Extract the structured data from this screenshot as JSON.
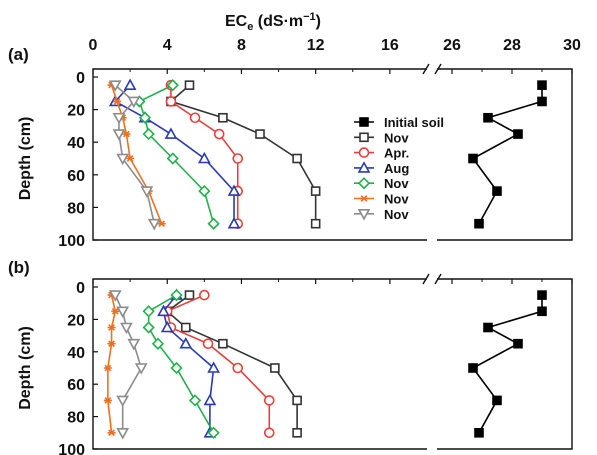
{
  "chart_data": {
    "type": "line",
    "xlabel": "EC",
    "xlabel_sub": "e",
    "xlabel_unit": " (dS·m",
    "xlabel_sup": "−1",
    "xlabel_close": ")",
    "ylabel": "Depth (cm)",
    "x_ticks_left": [
      "0",
      "4",
      "8",
      "12",
      "16"
    ],
    "x_ticks_right": [
      "26",
      "28",
      "30"
    ],
    "y_ticks": [
      "0",
      "20",
      "40",
      "60",
      "80",
      "100"
    ],
    "xlim_left": [
      0,
      18
    ],
    "xlim_right": [
      25.5,
      30
    ],
    "ylim": [
      0,
      100
    ],
    "x_axis_break": true,
    "legend_position": "right-middle",
    "panels": [
      {
        "label": "(a)",
        "series": [
          {
            "name": "Initial soil",
            "color": "#000000",
            "marker": "square-filled",
            "x": [
              29.0,
              29.0,
              27.2,
              28.2,
              26.7,
              27.5,
              26.9
            ],
            "y": [
              5,
              15,
              25,
              35,
              50,
              70,
              90
            ]
          },
          {
            "name": "Nov",
            "color": "#333333",
            "marker": "square-open",
            "x": [
              5.2,
              4.2,
              7.0,
              9.0,
              11.0,
              12.0,
              12.0
            ],
            "y": [
              5,
              15,
              25,
              35,
              50,
              70,
              90
            ]
          },
          {
            "name": "Apr.",
            "color": "#e8413c",
            "marker": "circle-open",
            "x": [
              4.2,
              4.2,
              5.5,
              6.8,
              7.8,
              7.8,
              7.8
            ],
            "y": [
              5,
              15,
              25,
              35,
              50,
              70,
              90
            ]
          },
          {
            "name": "Aug",
            "color": "#2a3ab5",
            "marker": "triangle-open",
            "x": [
              2.0,
              1.2,
              2.8,
              4.2,
              6.0,
              7.6,
              7.6
            ],
            "y": [
              5,
              15,
              25,
              35,
              50,
              70,
              90
            ]
          },
          {
            "name": "Nov",
            "color": "#22b14c",
            "marker": "diamond-open",
            "x": [
              4.3,
              2.5,
              2.8,
              3.0,
              4.3,
              6.0,
              6.5
            ],
            "y": [
              5,
              15,
              25,
              35,
              50,
              70,
              90
            ]
          },
          {
            "name": "Nov",
            "color": "#f07020",
            "marker": "asterisk",
            "x": [
              1.0,
              1.3,
              1.6,
              1.8,
              2.0,
              3.0,
              3.7
            ],
            "y": [
              5,
              15,
              25,
              35,
              50,
              70,
              90
            ]
          },
          {
            "name": "Nov",
            "color": "#8c8c8c",
            "marker": "triangle-down",
            "x": [
              1.2,
              2.2,
              1.4,
              1.4,
              1.6,
              2.9,
              3.3
            ],
            "y": [
              5,
              15,
              25,
              35,
              50,
              70,
              90
            ]
          }
        ]
      },
      {
        "label": "(b)",
        "series": [
          {
            "name": "Initial soil",
            "color": "#000000",
            "marker": "square-filled",
            "x": [
              29.0,
              29.0,
              27.2,
              28.2,
              26.7,
              27.5,
              26.9
            ],
            "y": [
              5,
              15,
              25,
              35,
              50,
              70,
              90
            ]
          },
          {
            "name": "Nov",
            "color": "#333333",
            "marker": "square-open",
            "x": [
              5.2,
              4.0,
              5.0,
              7.0,
              9.8,
              11.0,
              11.0
            ],
            "y": [
              5,
              15,
              25,
              35,
              50,
              70,
              90
            ]
          },
          {
            "name": "Apr.",
            "color": "#e8413c",
            "marker": "circle-open",
            "x": [
              6.0,
              4.0,
              4.2,
              6.2,
              7.8,
              9.5,
              9.5
            ],
            "y": [
              5,
              15,
              25,
              35,
              50,
              70,
              90
            ]
          },
          {
            "name": "Aug",
            "color": "#2a3ab5",
            "marker": "triangle-open",
            "x": [
              4.5,
              3.8,
              4.0,
              5.0,
              6.5,
              6.3,
              6.3
            ],
            "y": [
              5,
              15,
              25,
              35,
              50,
              70,
              90
            ]
          },
          {
            "name": "Nov",
            "color": "#22b14c",
            "marker": "diamond-open",
            "x": [
              4.5,
              3.0,
              3.0,
              3.5,
              4.5,
              5.5,
              6.5
            ],
            "y": [
              5,
              15,
              25,
              35,
              50,
              70,
              90
            ]
          },
          {
            "name": "Nov",
            "color": "#f07020",
            "marker": "asterisk",
            "x": [
              1.0,
              1.2,
              1.0,
              1.0,
              0.8,
              0.8,
              1.0
            ],
            "y": [
              5,
              15,
              25,
              35,
              50,
              70,
              90
            ]
          },
          {
            "name": "Nov",
            "color": "#8c8c8c",
            "marker": "triangle-down",
            "x": [
              1.2,
              1.6,
              1.8,
              2.2,
              2.6,
              1.6,
              1.6
            ],
            "y": [
              5,
              15,
              25,
              35,
              50,
              70,
              90
            ]
          }
        ]
      }
    ]
  }
}
